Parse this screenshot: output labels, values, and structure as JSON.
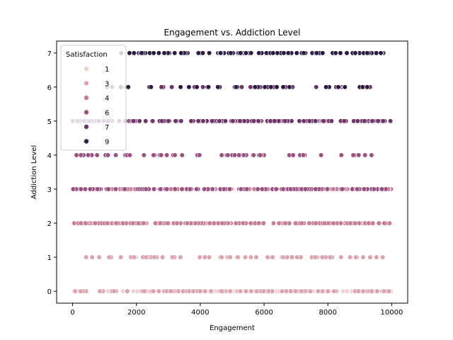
{
  "chart_data": {
    "type": "scatter",
    "title": "Engagement vs. Addiction Level",
    "xlabel": "Engagement",
    "ylabel": "Addiction Level",
    "xlim": [
      -500,
      10500
    ],
    "ylim": [
      -0.35,
      7.35
    ],
    "xticks": [
      0,
      2000,
      4000,
      6000,
      8000,
      10000
    ],
    "yticks": [
      0,
      1,
      2,
      3,
      4,
      5,
      6,
      7
    ],
    "grid": false,
    "legend": {
      "title": "Satisfaction",
      "placement": "top-left",
      "entries": [
        {
          "label": "1",
          "color": "#ecd3cf"
        },
        {
          "label": "3",
          "color": "#d9a4ae"
        },
        {
          "label": "4",
          "color": "#c47d98"
        },
        {
          "label": "6",
          "color": "#99527f"
        },
        {
          "label": "7",
          "color": "#6e3468"
        },
        {
          "label": "9",
          "color": "#2d1a3f"
        }
      ]
    },
    "series": [
      {
        "satisfaction": "1",
        "color": "#ecd3cf",
        "addiction_level": 0,
        "x_range": [
          0,
          10000
        ],
        "count": 140
      },
      {
        "satisfaction": "3",
        "color": "#d9a4ae",
        "addiction_level": 0,
        "x_range": [
          0,
          10000
        ],
        "count": 100
      },
      {
        "satisfaction": "3",
        "color": "#d9a4ae",
        "addiction_level": 1,
        "x_range": [
          0,
          9800
        ],
        "count": 70
      },
      {
        "satisfaction": "4",
        "color": "#c47d98",
        "addiction_level": 2,
        "x_range": [
          0,
          10000
        ],
        "count": 200
      },
      {
        "satisfaction": "4",
        "color": "#c47d98",
        "addiction_level": 3,
        "x_range": [
          0,
          10000
        ],
        "count": 90
      },
      {
        "satisfaction": "6",
        "color": "#99527f",
        "addiction_level": 3,
        "x_range": [
          0,
          10000
        ],
        "count": 110
      },
      {
        "satisfaction": "6",
        "color": "#99527f",
        "addiction_level": 4,
        "x_range": [
          0,
          10000
        ],
        "count": 60
      },
      {
        "satisfaction": "7",
        "color": "#6e3468",
        "addiction_level": 5,
        "x_range": [
          0,
          10000
        ],
        "count": 200
      },
      {
        "satisfaction": "7",
        "color": "#6e3468",
        "addiction_level": 6,
        "x_range": [
          1000,
          9800
        ],
        "count": 30
      },
      {
        "satisfaction": "9",
        "color": "#2d1a3f",
        "addiction_level": 6,
        "x_range": [
          1500,
          9800
        ],
        "count": 30
      },
      {
        "satisfaction": "9",
        "color": "#2d1a3f",
        "addiction_level": 7,
        "x_range": [
          1500,
          10000
        ],
        "count": 100
      }
    ]
  }
}
